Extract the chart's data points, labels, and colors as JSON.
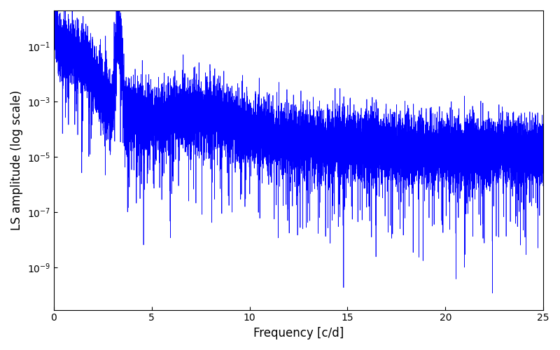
{
  "xlabel": "Frequency [c/d]",
  "ylabel": "LS amplitude (log scale)",
  "line_color": "#0000ff",
  "line_width": 0.5,
  "xlim": [
    0,
    25
  ],
  "ylim": [
    3e-11,
    2.0
  ],
  "yticks": [
    1e-09,
    1e-07,
    1e-05,
    0.001,
    0.1
  ],
  "xticks": [
    0,
    5,
    10,
    15,
    20,
    25
  ],
  "figsize": [
    8.0,
    5.0
  ],
  "dpi": 100,
  "seed": 7,
  "n_points": 15000,
  "freq_max": 25.0,
  "peak_freq": 3.3,
  "peak_amp": 0.22,
  "background_color": "#ffffff"
}
